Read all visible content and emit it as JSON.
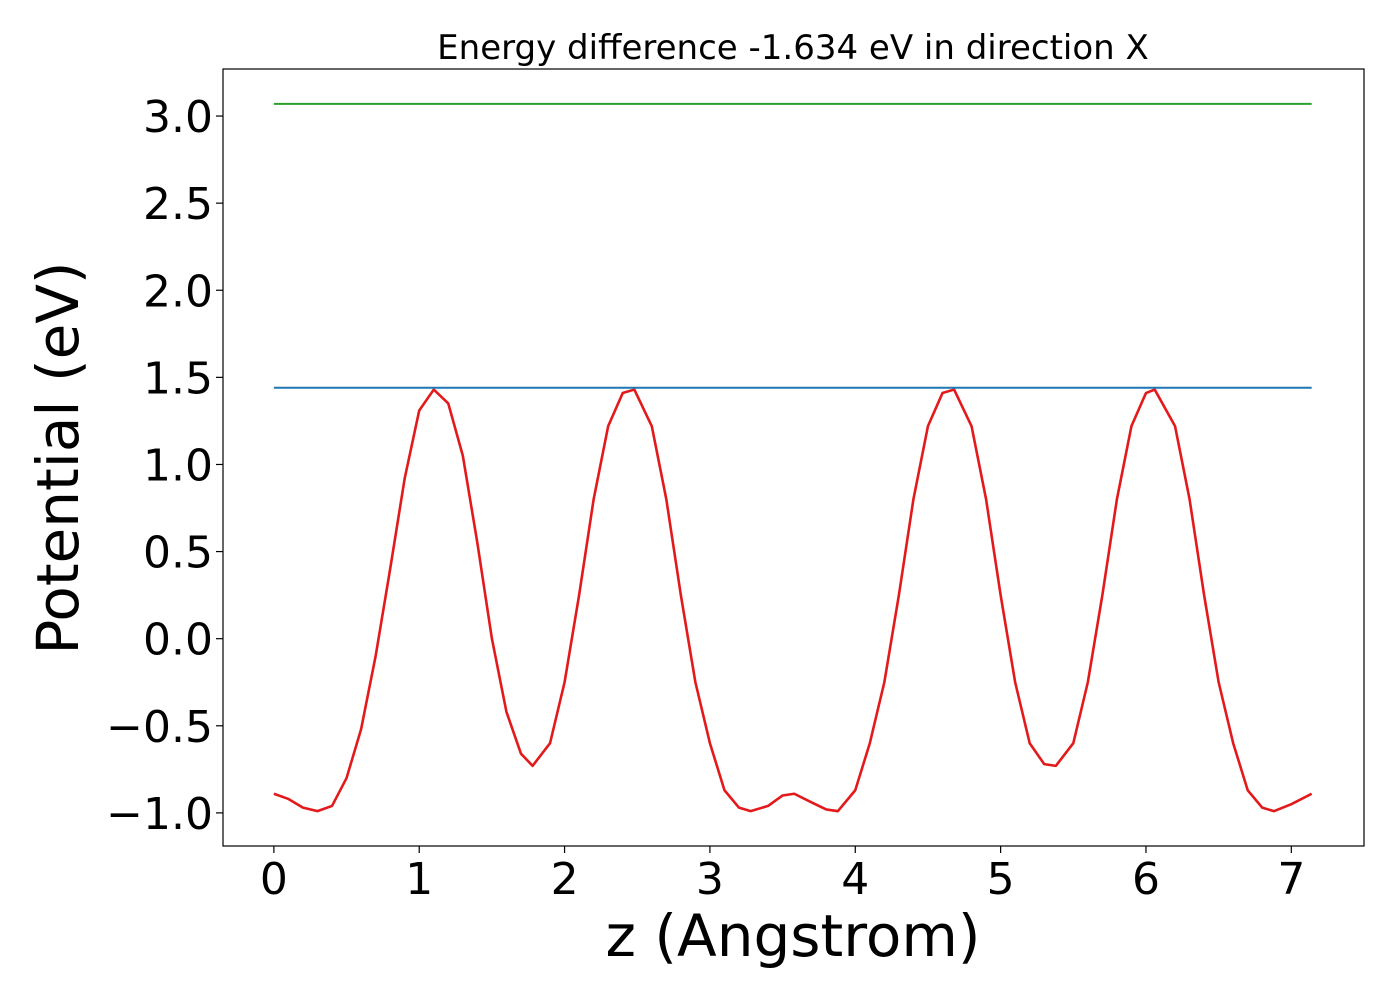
{
  "chart_data": {
    "type": "line",
    "title": "Energy difference -1.634 eV in direction X",
    "xlabel": "z (Angstrom)",
    "ylabel": "Potential (eV)",
    "xlim": [
      -0.35,
      7.5
    ],
    "ylim": [
      -1.19,
      3.27
    ],
    "x_ticks": [
      0,
      1,
      2,
      3,
      4,
      5,
      6,
      7
    ],
    "x_tick_labels": [
      "0",
      "1",
      "2",
      "3",
      "4",
      "5",
      "6",
      "7"
    ],
    "y_ticks": [
      -1.0,
      -0.5,
      0.0,
      0.5,
      1.0,
      1.5,
      2.0,
      2.5,
      3.0
    ],
    "y_tick_labels": [
      "−1.0",
      "−0.5",
      "0.0",
      "0.5",
      "1.0",
      "1.5",
      "2.0",
      "2.5",
      "3.0"
    ],
    "grid": false,
    "legend": "none",
    "series": [
      {
        "color": "#e31a1c",
        "x": [
          0.0,
          0.1,
          0.2,
          0.3,
          0.4,
          0.5,
          0.6,
          0.7,
          0.8,
          0.9,
          1.0,
          1.1,
          1.2,
          1.3,
          1.4,
          1.5,
          1.6,
          1.7,
          1.78,
          1.9,
          2.0,
          2.1,
          2.2,
          2.3,
          2.4,
          2.48,
          2.6,
          2.7,
          2.8,
          2.9,
          3.0,
          3.1,
          3.2,
          3.28,
          3.4,
          3.5,
          3.58,
          3.7,
          3.8,
          3.88,
          4.0,
          4.1,
          4.2,
          4.3,
          4.4,
          4.5,
          4.6,
          4.68,
          4.8,
          4.9,
          5.0,
          5.1,
          5.2,
          5.3,
          5.38,
          5.5,
          5.6,
          5.7,
          5.8,
          5.9,
          6.0,
          6.06,
          6.2,
          6.3,
          6.4,
          6.5,
          6.6,
          6.7,
          6.8,
          6.88,
          7.0,
          7.14
        ],
        "y": [
          -0.89,
          -0.92,
          -0.97,
          -0.99,
          -0.96,
          -0.8,
          -0.52,
          -0.1,
          0.4,
          0.92,
          1.31,
          1.43,
          1.35,
          1.05,
          0.55,
          0.0,
          -0.42,
          -0.66,
          -0.73,
          -0.6,
          -0.25,
          0.25,
          0.8,
          1.22,
          1.41,
          1.43,
          1.22,
          0.8,
          0.25,
          -0.25,
          -0.6,
          -0.87,
          -0.97,
          -0.99,
          -0.96,
          -0.9,
          -0.89,
          -0.94,
          -0.98,
          -0.99,
          -0.87,
          -0.6,
          -0.25,
          0.25,
          0.8,
          1.22,
          1.41,
          1.43,
          1.22,
          0.8,
          0.25,
          -0.25,
          -0.6,
          -0.72,
          -0.73,
          -0.6,
          -0.25,
          0.25,
          0.8,
          1.22,
          1.41,
          1.43,
          1.22,
          0.8,
          0.25,
          -0.25,
          -0.6,
          -0.87,
          -0.97,
          -0.99,
          -0.95,
          -0.89
        ]
      },
      {
        "color": "#1f77b4",
        "x": [
          0.0,
          7.14
        ],
        "y": [
          1.44,
          1.44
        ]
      },
      {
        "color": "#2ca02c",
        "x": [
          0.0,
          7.14
        ],
        "y": [
          3.07,
          3.07
        ]
      }
    ]
  }
}
